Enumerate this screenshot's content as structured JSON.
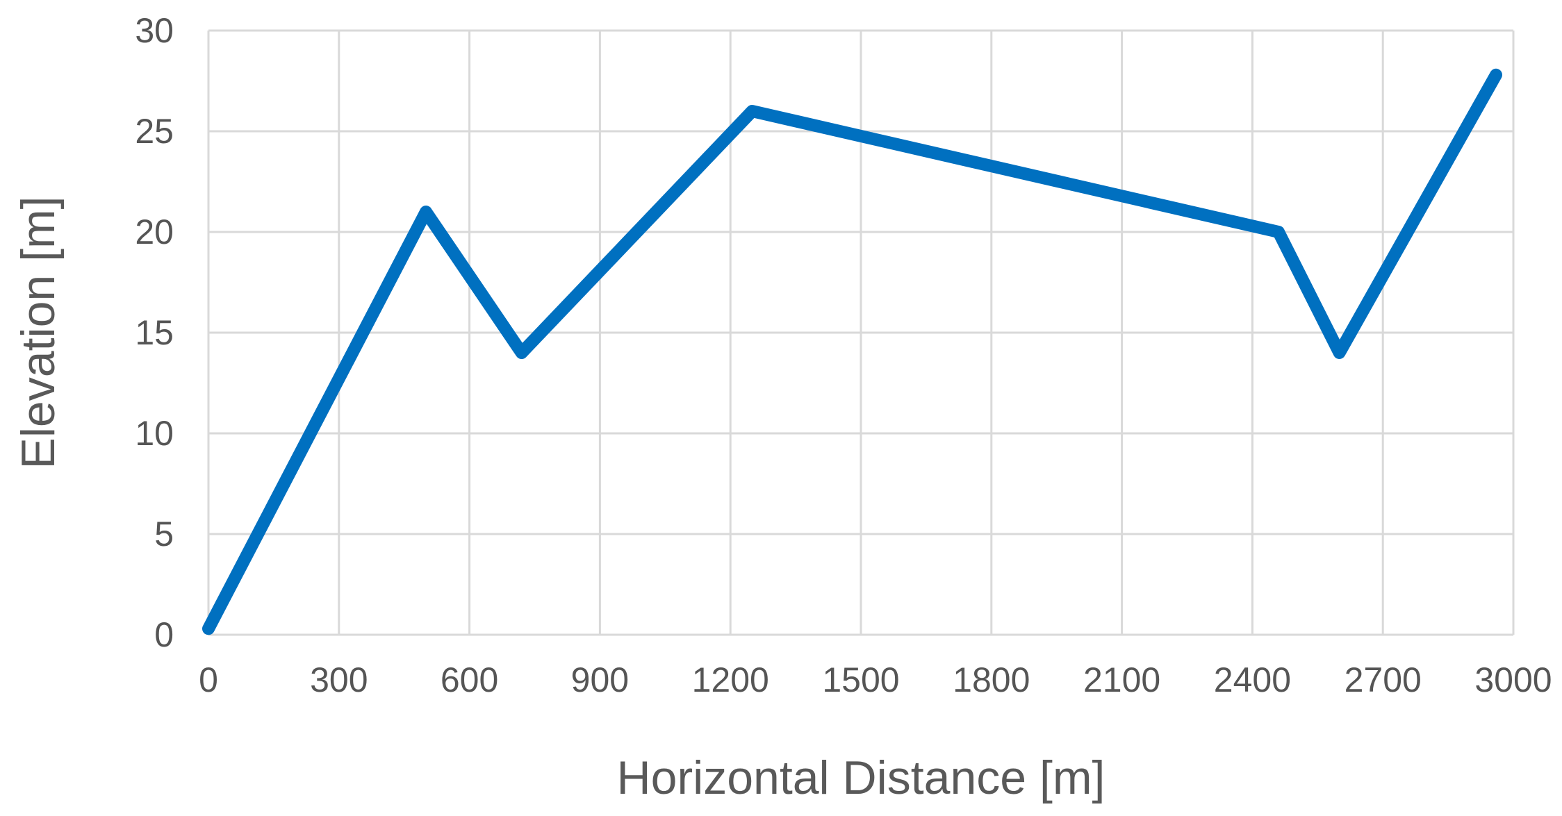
{
  "chart_data": {
    "type": "line",
    "title": "",
    "xlabel": "Horizontal Distance [m]",
    "ylabel": "Elevation [m]",
    "xlim": [
      0,
      3000
    ],
    "ylim": [
      0,
      30
    ],
    "x_ticks": [
      0,
      300,
      600,
      900,
      1200,
      1500,
      1800,
      2100,
      2400,
      2700,
      3000
    ],
    "y_ticks": [
      0,
      5,
      10,
      15,
      20,
      25,
      30
    ],
    "grid": true,
    "legend": "none",
    "series": [
      {
        "color": "#0070c0",
        "x": [
          0,
          500,
          720,
          1250,
          2460,
          2600,
          2960
        ],
        "y": [
          0.3,
          21,
          14,
          26,
          20,
          14,
          27.8
        ]
      }
    ]
  }
}
